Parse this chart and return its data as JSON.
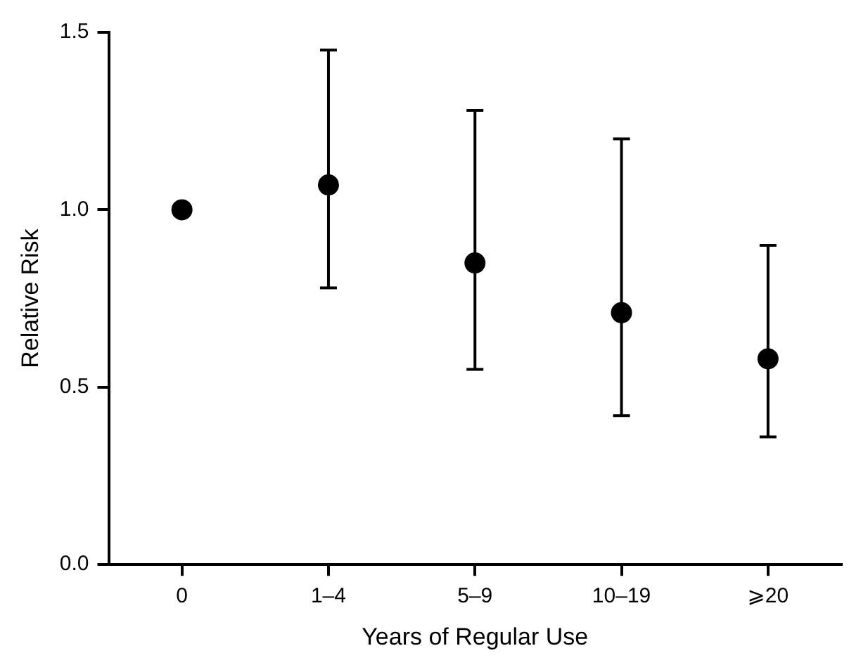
{
  "chart_data": {
    "type": "scatter",
    "xlabel": "Years of Regular Use",
    "ylabel": "Relative Risk",
    "categories": [
      "0",
      "1–4",
      "5–9",
      "10–19",
      "⩾20"
    ],
    "series": [
      {
        "color": "#000000",
        "values": [
          1.0,
          1.07,
          0.85,
          0.71,
          0.58
        ],
        "errors": [
          null,
          [
            0.78,
            1.45
          ],
          [
            0.55,
            1.28
          ],
          [
            0.42,
            1.2
          ],
          [
            0.36,
            0.9
          ]
        ]
      }
    ],
    "ylim": [
      0,
      1.5
    ],
    "yticks": [
      {
        "value": 0,
        "label": "0.0"
      },
      {
        "value": 0.5,
        "label": "0.5"
      },
      {
        "value": 1,
        "label": "1.0"
      },
      {
        "value": 1.5,
        "label": "1.5"
      }
    ],
    "grid": false,
    "legend": false,
    "marker": "circle"
  }
}
